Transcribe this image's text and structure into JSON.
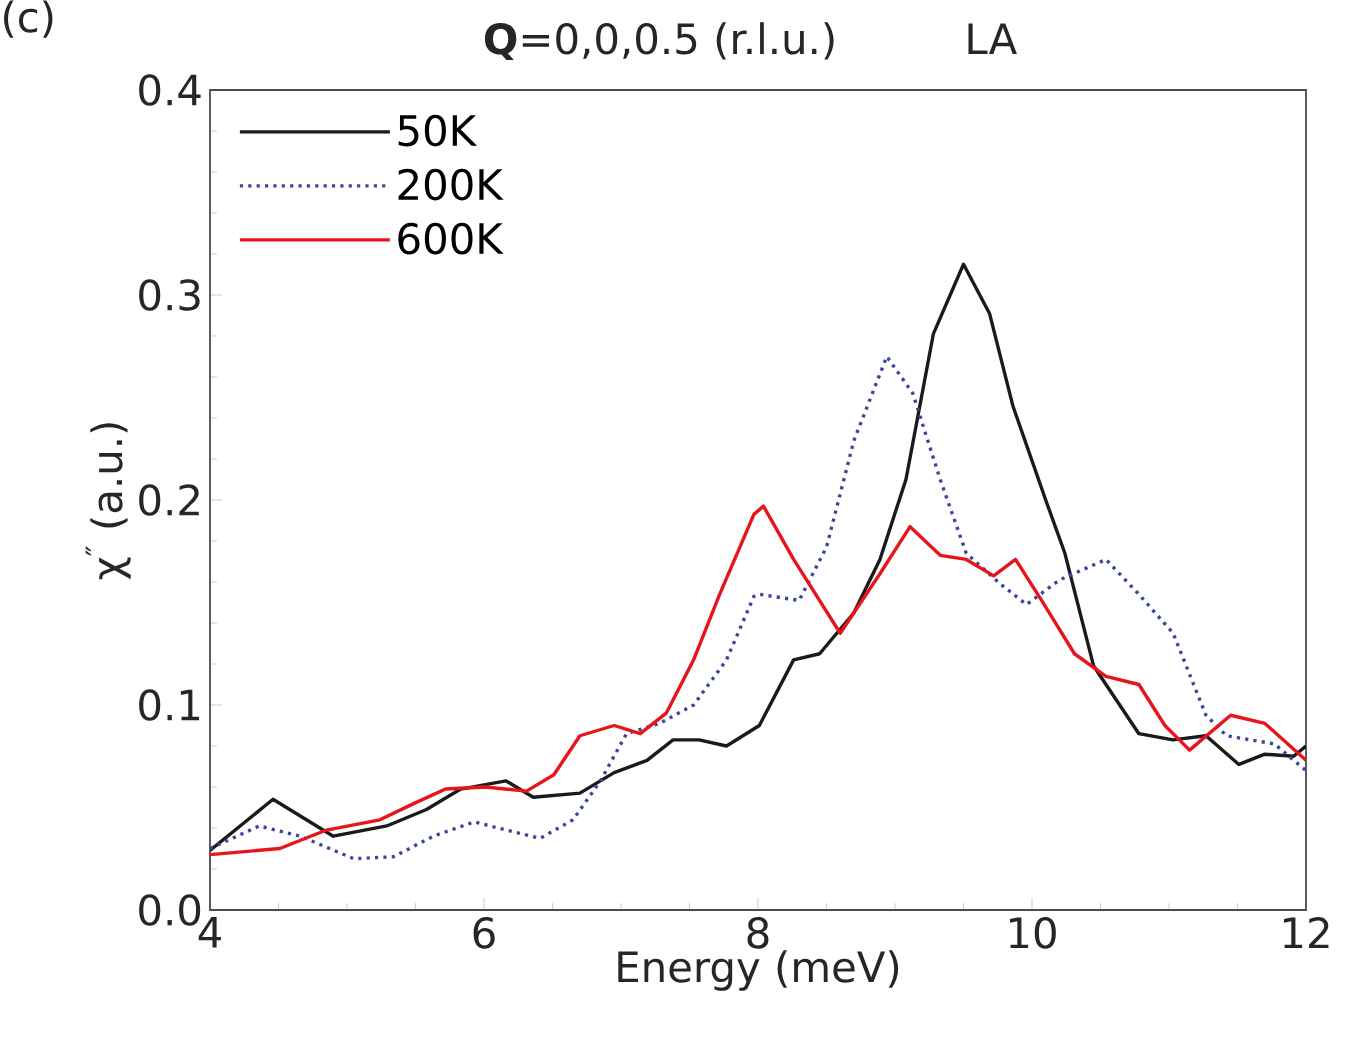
{
  "chart_data": {
    "type": "line",
    "title": "**Q**=0,0,0.5 (r.l.u.)",
    "xlabel": "Energy (meV)",
    "ylabel": "χ$^{″}$ (a.u.)",
    "annotations": [
      "(c)",
      "LA"
    ],
    "xlim": [
      4,
      12
    ],
    "ylim": [
      0.0,
      0.4
    ],
    "xticks": [
      4,
      6,
      8,
      10,
      12
    ],
    "yticks": [
      {
        "value": 0.0,
        "label": "0.0"
      },
      0.1,
      0.2,
      0.3,
      0.4
    ],
    "legend": "top left",
    "grid": false,
    "series": [
      {
        "name": "50K",
        "color": "#1a1a1a",
        "line_style": "solid",
        "x": [
          4.0,
          4.46,
          4.9,
          5.29,
          5.58,
          5.83,
          6.16,
          6.36,
          6.7,
          6.95,
          7.19,
          7.38,
          7.57,
          7.77,
          8.01,
          8.26,
          8.45,
          8.7,
          8.89,
          9.08,
          9.28,
          9.5,
          9.69,
          9.86,
          10.1,
          10.24,
          10.45,
          10.78,
          11.03,
          11.27,
          11.51,
          11.7,
          11.91,
          12.0
        ],
        "values": [
          0.029,
          0.054,
          0.036,
          0.041,
          0.049,
          0.059,
          0.063,
          0.055,
          0.057,
          0.067,
          0.073,
          0.083,
          0.083,
          0.08,
          0.09,
          0.122,
          0.125,
          0.145,
          0.171,
          0.21,
          0.281,
          0.315,
          0.291,
          0.246,
          0.2,
          0.174,
          0.119,
          0.086,
          0.083,
          0.085,
          0.071,
          0.076,
          0.075,
          0.08
        ]
      },
      {
        "name": "200K",
        "color": "#3a47a0",
        "line_style": "dotted",
        "x": [
          4.0,
          4.36,
          4.66,
          5.05,
          5.34,
          5.63,
          5.93,
          6.16,
          6.41,
          6.65,
          6.85,
          7.04,
          7.28,
          7.53,
          7.77,
          7.97,
          8.01,
          8.3,
          8.5,
          8.7,
          8.94,
          9.13,
          9.33,
          9.52,
          9.77,
          9.96,
          10.2,
          10.54,
          10.78,
          11.03,
          11.27,
          11.42,
          11.77,
          12.0
        ],
        "values": [
          0.03,
          0.041,
          0.036,
          0.025,
          0.026,
          0.036,
          0.043,
          0.039,
          0.035,
          0.044,
          0.063,
          0.086,
          0.091,
          0.1,
          0.122,
          0.153,
          0.154,
          0.151,
          0.177,
          0.229,
          0.27,
          0.252,
          0.21,
          0.174,
          0.159,
          0.149,
          0.161,
          0.171,
          0.154,
          0.135,
          0.095,
          0.085,
          0.081,
          0.068
        ]
      },
      {
        "name": "600K",
        "color": "#e8141c",
        "line_style": "solid",
        "x": [
          4.0,
          4.51,
          4.85,
          5.24,
          5.49,
          5.72,
          6.01,
          6.31,
          6.51,
          6.7,
          6.95,
          7.14,
          7.33,
          7.53,
          7.72,
          7.97,
          8.04,
          8.26,
          8.6,
          8.89,
          9.11,
          9.33,
          9.52,
          9.72,
          9.88,
          10.07,
          10.31,
          10.54,
          10.78,
          10.97,
          11.15,
          11.45,
          11.7,
          12.0
        ],
        "values": [
          0.027,
          0.03,
          0.039,
          0.044,
          0.052,
          0.059,
          0.06,
          0.058,
          0.066,
          0.085,
          0.09,
          0.086,
          0.096,
          0.122,
          0.154,
          0.193,
          0.197,
          0.171,
          0.135,
          0.164,
          0.187,
          0.173,
          0.171,
          0.163,
          0.171,
          0.151,
          0.125,
          0.114,
          0.11,
          0.09,
          0.078,
          0.095,
          0.091,
          0.073
        ]
      }
    ]
  }
}
